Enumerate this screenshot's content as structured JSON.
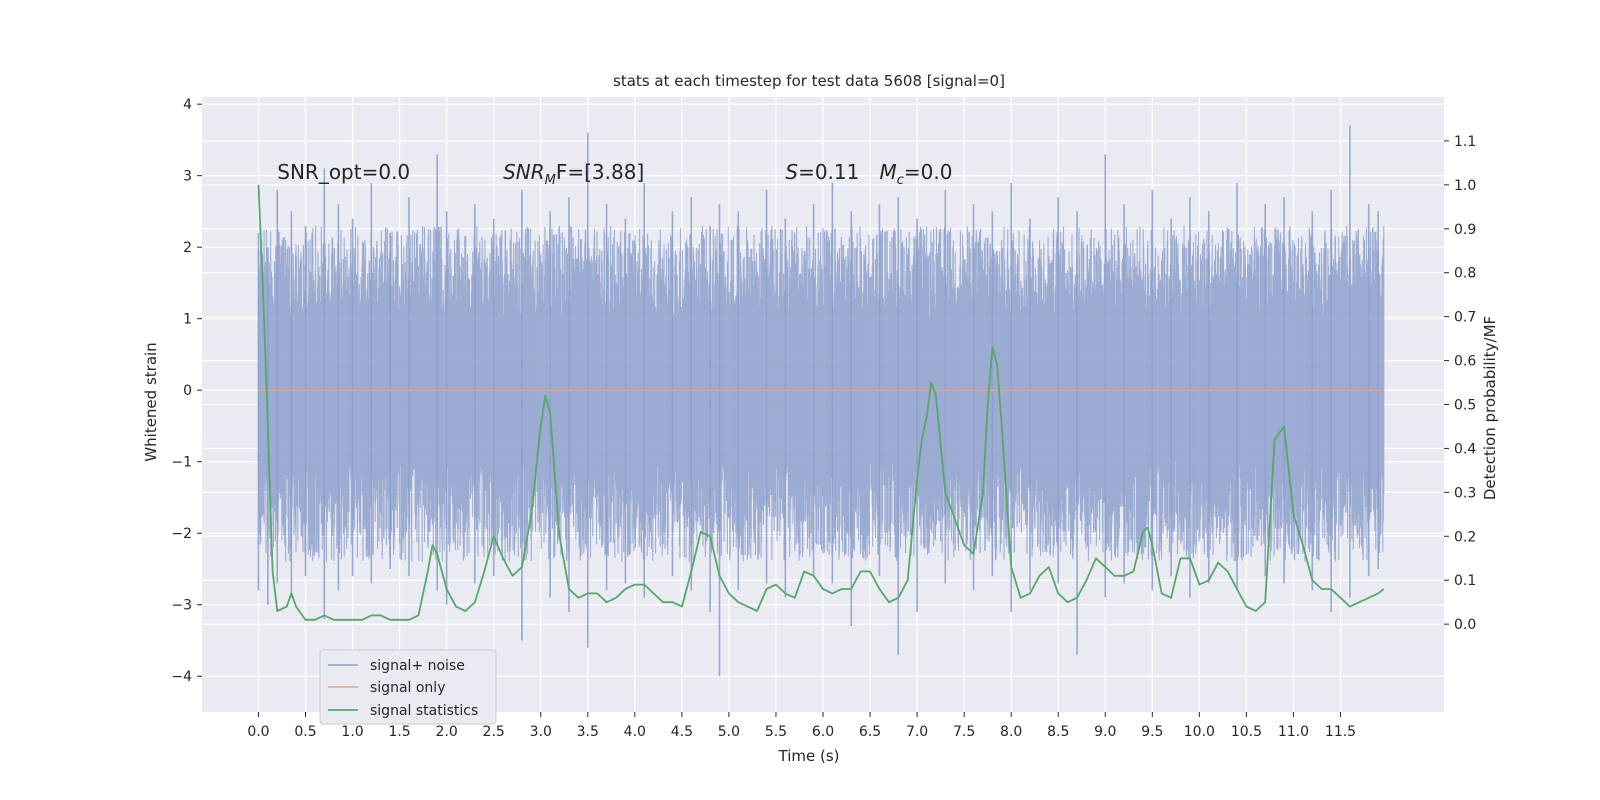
{
  "chart_data": {
    "type": "line",
    "title": "stats at each timestep for test data 5608 [signal=0]",
    "xlabel": "Time (s)",
    "ylabel": "Whitened strain",
    "ylabel_right": "Detection probability/MF",
    "xlim": [
      -0.6,
      12.6
    ],
    "ylim": [
      -4.5,
      4.1
    ],
    "ylim_right": [
      -0.2,
      1.2
    ],
    "x_ticks": [
      0.0,
      0.5,
      1.0,
      1.5,
      2.0,
      2.5,
      3.0,
      3.5,
      4.0,
      4.5,
      5.0,
      5.5,
      6.0,
      6.5,
      7.0,
      7.5,
      8.0,
      8.5,
      9.0,
      9.5,
      10.0,
      10.5,
      11.0,
      11.5
    ],
    "x_tick_labels": [
      "0.0",
      "0.5",
      "1.0",
      "1.5",
      "2.0",
      "2.5",
      "3.0",
      "3.5",
      "4.0",
      "4.5",
      "5.0",
      "5.5",
      "6.0",
      "6.5",
      "7.0",
      "7.5",
      "8.0",
      "8.5",
      "9.0",
      "9.5",
      "10.0",
      "10.5",
      "11.0",
      "11.5"
    ],
    "y_ticks": [
      -4,
      -3,
      -2,
      -1,
      0,
      1,
      2,
      3,
      4
    ],
    "y_tick_labels": [
      "−4",
      "−3",
      "−2",
      "−1",
      "0",
      "1",
      "2",
      "3",
      "4"
    ],
    "y_ticks_right": [
      0.0,
      0.1,
      0.2,
      0.3,
      0.4,
      0.5,
      0.6,
      0.7,
      0.8,
      0.9,
      1.0,
      1.1
    ],
    "y_tick_labels_right": [
      "0.0",
      "0.1",
      "0.2",
      "0.3",
      "0.4",
      "0.5",
      "0.6",
      "0.7",
      "0.8",
      "0.9",
      "1.0",
      "1.1"
    ],
    "grid": true,
    "legend_position": "bottom-left",
    "annotations": [
      {
        "text": "SNR_opt=0.0",
        "x": 0.2,
        "y": 2.95
      },
      {
        "main": "SNR",
        "sub": "M",
        "tail": "F=[3.88]",
        "x": 2.6,
        "y": 2.95
      },
      {
        "main": "S",
        "tail": "=0.11",
        "x": 5.6,
        "y": 2.95
      },
      {
        "main": "M",
        "sub": "c",
        "tail": "=0.0",
        "x": 6.6,
        "y": 2.95
      }
    ],
    "series": [
      {
        "name": "signal+ noise",
        "color": "#8da0cb",
        "axis": "left",
        "x_start": 0.0,
        "x_end": 11.96,
        "envelope_note": "dense whitened noise, roughly between -1.5 and 1.6 with spikes",
        "spikes_x": [
          0.0,
          0.1,
          0.2,
          0.35,
          0.5,
          0.7,
          0.85,
          1.0,
          1.2,
          1.4,
          1.6,
          1.9,
          2.0,
          2.3,
          2.5,
          2.8,
          3.1,
          3.3,
          3.5,
          3.7,
          3.9,
          4.1,
          4.4,
          4.6,
          4.8,
          4.9,
          5.1,
          5.4,
          5.6,
          5.9,
          6.1,
          6.3,
          6.6,
          6.8,
          7.0,
          7.3,
          7.6,
          7.8,
          8.0,
          8.2,
          8.5,
          8.7,
          9.0,
          9.2,
          9.5,
          9.7,
          9.9,
          10.1,
          10.4,
          10.7,
          10.9,
          11.2,
          11.4,
          11.6,
          11.8,
          11.9
        ],
        "spikes_high": [
          2.2,
          2.0,
          2.8,
          2.5,
          2.3,
          3.1,
          2.6,
          2.4,
          2.9,
          2.2,
          2.7,
          3.3,
          2.5,
          2.6,
          2.4,
          2.8,
          2.5,
          2.7,
          3.6,
          2.6,
          2.4,
          2.9,
          2.5,
          2.7,
          2.3,
          2.6,
          2.5,
          2.8,
          2.4,
          2.6,
          2.9,
          2.5,
          2.6,
          2.7,
          2.4,
          2.8,
          2.6,
          2.5,
          2.9,
          2.4,
          2.7,
          2.5,
          3.3,
          2.6,
          2.8,
          2.4,
          2.7,
          2.5,
          2.9,
          2.6,
          2.7,
          2.5,
          2.8,
          3.7,
          2.6,
          2.5
        ],
        "spikes_low": [
          -2.8,
          -3.0,
          -2.7,
          -2.9,
          -2.6,
          -3.2,
          -2.8,
          -2.6,
          -2.7,
          -2.5,
          -2.6,
          -2.8,
          -3.0,
          -2.7,
          -2.6,
          -3.5,
          -2.9,
          -3.1,
          -3.6,
          -2.8,
          -2.7,
          -2.9,
          -2.6,
          -2.8,
          -3.1,
          -4.0,
          -2.8,
          -2.7,
          -2.9,
          -2.6,
          -2.7,
          -3.3,
          -2.6,
          -3.7,
          -3.1,
          -2.7,
          -2.8,
          -2.6,
          -3.1,
          -2.8,
          -2.7,
          -3.7,
          -2.9,
          -2.7,
          -2.8,
          -2.6,
          -2.9,
          -2.7,
          -2.8,
          -2.6,
          -2.7,
          -2.8,
          -3.1,
          -2.9,
          -2.6,
          -2.5
        ]
      },
      {
        "name": "signal only",
        "color": "#e5a08a",
        "axis": "left",
        "x": [
          0.0,
          11.96
        ],
        "y": [
          0.0,
          0.0
        ]
      },
      {
        "name": "signal statistics",
        "color": "#55a868",
        "axis": "right",
        "x": [
          0.0,
          0.05,
          0.1,
          0.15,
          0.2,
          0.3,
          0.35,
          0.4,
          0.5,
          0.6,
          0.7,
          0.8,
          0.9,
          1.0,
          1.1,
          1.2,
          1.3,
          1.4,
          1.5,
          1.6,
          1.7,
          1.8,
          1.85,
          1.9,
          2.0,
          2.1,
          2.2,
          2.3,
          2.4,
          2.5,
          2.6,
          2.7,
          2.8,
          2.9,
          3.0,
          3.05,
          3.1,
          3.2,
          3.3,
          3.4,
          3.5,
          3.6,
          3.7,
          3.8,
          3.9,
          4.0,
          4.1,
          4.2,
          4.3,
          4.4,
          4.5,
          4.6,
          4.7,
          4.8,
          4.9,
          5.0,
          5.1,
          5.2,
          5.3,
          5.4,
          5.5,
          5.6,
          5.7,
          5.8,
          5.9,
          6.0,
          6.1,
          6.2,
          6.3,
          6.4,
          6.5,
          6.6,
          6.7,
          6.8,
          6.9,
          7.0,
          7.05,
          7.1,
          7.15,
          7.2,
          7.3,
          7.4,
          7.5,
          7.6,
          7.7,
          7.75,
          7.8,
          7.85,
          7.9,
          8.0,
          8.1,
          8.2,
          8.3,
          8.4,
          8.5,
          8.6,
          8.7,
          8.8,
          8.9,
          9.0,
          9.1,
          9.2,
          9.3,
          9.4,
          9.45,
          9.5,
          9.6,
          9.7,
          9.8,
          9.9,
          10.0,
          10.1,
          10.2,
          10.3,
          10.4,
          10.5,
          10.6,
          10.7,
          10.8,
          10.9,
          11.0,
          11.1,
          11.2,
          11.3,
          11.4,
          11.5,
          11.6,
          11.7,
          11.8,
          11.9,
          11.96
        ],
        "y": [
          1.0,
          0.75,
          0.45,
          0.12,
          0.03,
          0.04,
          0.07,
          0.04,
          0.01,
          0.01,
          0.02,
          0.01,
          0.01,
          0.01,
          0.01,
          0.02,
          0.02,
          0.01,
          0.01,
          0.01,
          0.02,
          0.12,
          0.18,
          0.16,
          0.08,
          0.04,
          0.03,
          0.05,
          0.12,
          0.2,
          0.15,
          0.11,
          0.13,
          0.25,
          0.45,
          0.52,
          0.48,
          0.2,
          0.08,
          0.06,
          0.07,
          0.07,
          0.05,
          0.06,
          0.08,
          0.09,
          0.09,
          0.07,
          0.05,
          0.05,
          0.04,
          0.12,
          0.21,
          0.2,
          0.11,
          0.07,
          0.05,
          0.04,
          0.03,
          0.08,
          0.09,
          0.07,
          0.06,
          0.12,
          0.11,
          0.08,
          0.07,
          0.08,
          0.08,
          0.12,
          0.12,
          0.08,
          0.05,
          0.06,
          0.1,
          0.33,
          0.42,
          0.47,
          0.55,
          0.52,
          0.3,
          0.24,
          0.18,
          0.16,
          0.3,
          0.5,
          0.63,
          0.59,
          0.45,
          0.13,
          0.06,
          0.07,
          0.11,
          0.13,
          0.07,
          0.05,
          0.06,
          0.1,
          0.15,
          0.13,
          0.11,
          0.11,
          0.12,
          0.21,
          0.22,
          0.18,
          0.07,
          0.06,
          0.15,
          0.15,
          0.09,
          0.1,
          0.14,
          0.12,
          0.08,
          0.04,
          0.03,
          0.05,
          0.42,
          0.45,
          0.25,
          0.18,
          0.1,
          0.08,
          0.08,
          0.06,
          0.04,
          0.05,
          0.06,
          0.07,
          0.08
        ]
      }
    ]
  }
}
